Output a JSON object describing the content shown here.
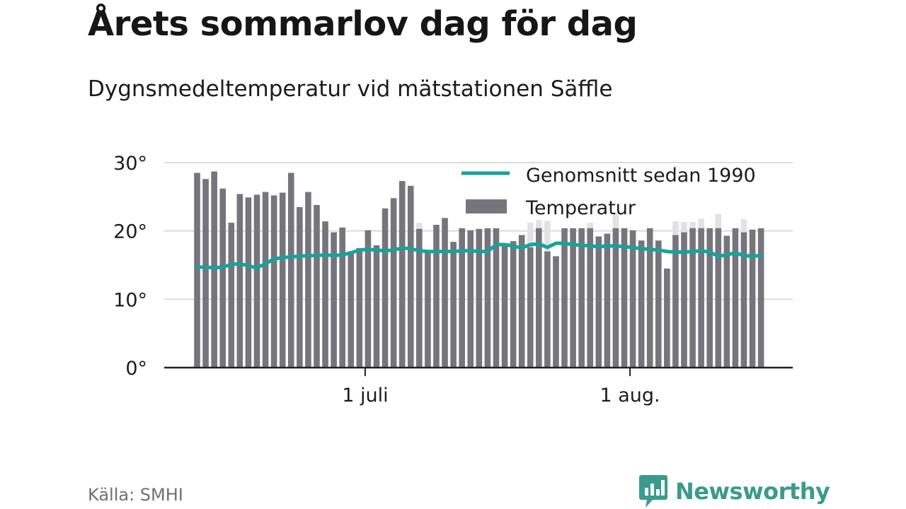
{
  "header": {
    "title": "Årets sommarlov dag för dag",
    "subtitle": "Dygnsmedeltemperatur vid mätstationen Säffle"
  },
  "footer": {
    "source": "Källa: SMHI",
    "brand": "Newsworthy"
  },
  "colors": {
    "bar": "#76757d",
    "bar_overflow": "#e2e2e2",
    "line": "#14a39c",
    "grid": "#dcdcdc",
    "axis": "#222222",
    "brand": "#3a9b8c"
  },
  "chart_data": {
    "type": "bar",
    "title": "Årets sommarlov dag för dag",
    "subtitle": "Dygnsmedeltemperatur vid mätstationen Säffle",
    "x_first_date": "2018-06-11",
    "x_ticks": [
      {
        "date": "2018-07-01",
        "label": "1 juli"
      },
      {
        "date": "2018-08-01",
        "label": "1 aug."
      }
    ],
    "y_ticks": [
      {
        "value": 0,
        "label": "0°"
      },
      {
        "value": 10,
        "label": "10°"
      },
      {
        "value": 20,
        "label": "20°"
      },
      {
        "value": 30,
        "label": "30°"
      }
    ],
    "ylim": [
      0,
      30
    ],
    "grid": true,
    "legend_position": "top-right",
    "series": [
      {
        "name": "Temperatur",
        "kind": "bar",
        "values": [
          28.5,
          27.6,
          28.7,
          26.2,
          21.2,
          25.4,
          24.9,
          25.3,
          25.7,
          25.2,
          25.6,
          28.5,
          23.5,
          25.7,
          23.8,
          21.4,
          19.8,
          20.5,
          17.0,
          17.5,
          20.1,
          17.9,
          23.3,
          24.8,
          27.3,
          26.6,
          20.3,
          17.0,
          20.9,
          21.9,
          18.4,
          20.4,
          20.1,
          20.3,
          20.4,
          20.4,
          18.2,
          18.5,
          19.4,
          17.6,
          20.4,
          17.0,
          16.3,
          20.4,
          20.4,
          20.4,
          20.4,
          19.2,
          19.6,
          20.4,
          20.4,
          20.1,
          18.6,
          20.4,
          18.6,
          14.5,
          19.4,
          19.8,
          20.4,
          20.4,
          20.4,
          20.4,
          19.3,
          20.4,
          19.8,
          20.2,
          20.4
        ]
      },
      {
        "name": "Genomsnitt sedan 1990",
        "kind": "line",
        "values": [
          14.7,
          14.7,
          14.6,
          14.7,
          15.1,
          15.2,
          14.9,
          14.6,
          15.2,
          15.9,
          16.1,
          16.2,
          16.3,
          16.4,
          16.4,
          16.5,
          16.4,
          16.5,
          16.8,
          17.2,
          17.3,
          17.2,
          17.1,
          17.2,
          17.5,
          17.4,
          17.1,
          17.0,
          17.0,
          17.0,
          17.0,
          17.1,
          17.1,
          17.0,
          17.0,
          18.0,
          18.0,
          17.8,
          17.5,
          18.0,
          18.1,
          17.6,
          18.2,
          18.2,
          18.0,
          17.9,
          17.8,
          17.7,
          17.8,
          17.8,
          17.7,
          17.6,
          17.4,
          17.3,
          17.2,
          17.0,
          16.9,
          16.9,
          17.0,
          17.1,
          16.9,
          16.3,
          16.5,
          16.8,
          16.4,
          16.3,
          16.4
        ]
      }
    ],
    "overflow_bars": [
      {
        "date": "2018-07-07",
        "value": 21.2
      },
      {
        "date": "2018-07-20",
        "value": 21.2
      },
      {
        "date": "2018-07-21",
        "value": 21.6
      },
      {
        "date": "2018-07-22",
        "value": 21.5
      },
      {
        "date": "2018-07-27",
        "value": 21.2
      },
      {
        "date": "2018-07-30",
        "value": 22.6
      },
      {
        "date": "2018-08-06",
        "value": 21.4
      },
      {
        "date": "2018-08-07",
        "value": 21.3
      },
      {
        "date": "2018-08-08",
        "value": 21.3
      },
      {
        "date": "2018-08-09",
        "value": 21.8
      },
      {
        "date": "2018-08-11",
        "value": 22.5
      },
      {
        "date": "2018-08-14",
        "value": 21.7
      }
    ]
  }
}
